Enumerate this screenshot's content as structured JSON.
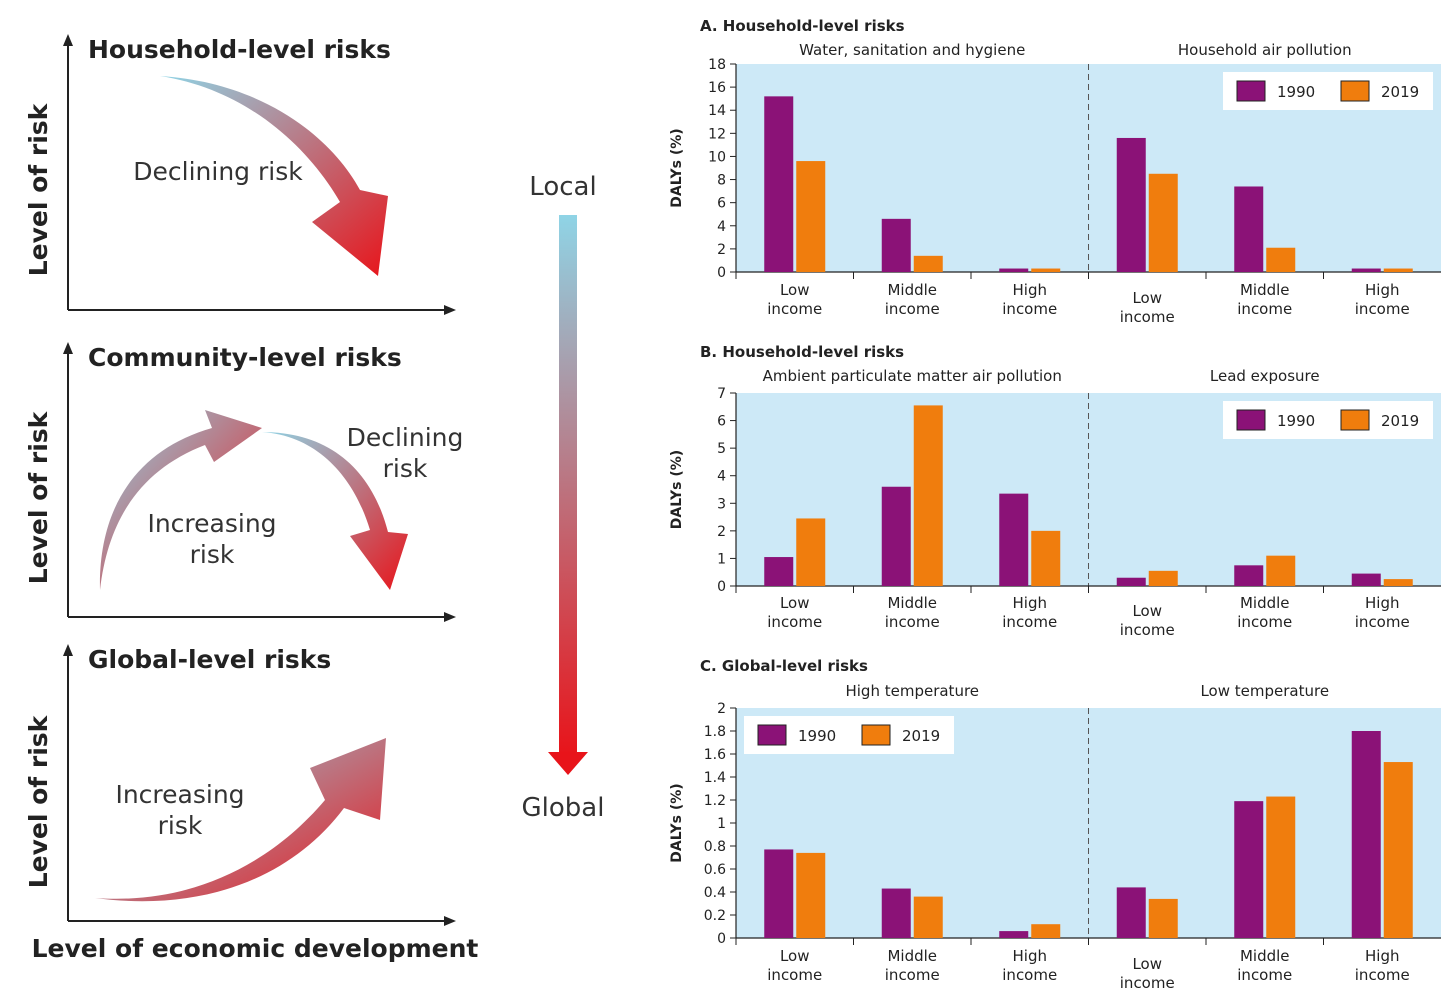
{
  "concept": {
    "panels": [
      {
        "title": "Household-level risks",
        "ylabel": "Level of risk",
        "labels": [
          "Declining risk"
        ]
      },
      {
        "title": "Community-level risks",
        "ylabel": "Level of risk",
        "labels": [
          "Increasing risk",
          "Declining risk"
        ]
      },
      {
        "title": "Global-level risks",
        "ylabel": "Level of risk",
        "labels": [
          "Increasing risk"
        ]
      }
    ],
    "xlabel": "Level of economic development",
    "scale": {
      "top": "Local",
      "bottom": "Global"
    }
  },
  "colors": {
    "s1990": "#8b1277",
    "s2019": "#f07d0d",
    "plot_bg": "#cde9f7",
    "arrow_start": "#8fd4e6",
    "arrow_end": "#e8141a"
  },
  "chart_data": [
    {
      "type": "bar",
      "title": "A. Household-level risks",
      "ylabel": "DALYs (%)",
      "ylim": [
        0,
        18
      ],
      "yticks": [
        0,
        2,
        4,
        6,
        8,
        10,
        12,
        14,
        16,
        18
      ],
      "legend": {
        "entries": [
          "1990",
          "2019"
        ],
        "position": "top-right"
      },
      "panels": [
        {
          "subtitle": "Water, sanitation and hygiene",
          "categories": [
            "Low income",
            "Middle income",
            "High income"
          ],
          "series": [
            {
              "name": "1990",
              "values": [
                15.2,
                4.6,
                0.3
              ]
            },
            {
              "name": "2019",
              "values": [
                9.6,
                1.4,
                0.3
              ]
            }
          ]
        },
        {
          "subtitle": "Household air pollution",
          "categories": [
            "Low income",
            "Middle income",
            "High income"
          ],
          "series": [
            {
              "name": "1990",
              "values": [
                11.6,
                7.4,
                0.3
              ]
            },
            {
              "name": "2019",
              "values": [
                8.5,
                2.1,
                0.3
              ]
            }
          ]
        }
      ]
    },
    {
      "type": "bar",
      "title": "B. Household-level risks",
      "ylabel": "DALYs (%)",
      "ylim": [
        0,
        7
      ],
      "yticks": [
        0,
        1,
        2,
        3,
        4,
        5,
        6,
        7
      ],
      "legend": {
        "entries": [
          "1990",
          "2019"
        ],
        "position": "top-right"
      },
      "panels": [
        {
          "subtitle": "Ambient particulate matter air pollution",
          "categories": [
            "Low income",
            "Middle income",
            "High income"
          ],
          "series": [
            {
              "name": "1990",
              "values": [
                1.05,
                3.6,
                3.35
              ]
            },
            {
              "name": "2019",
              "values": [
                2.45,
                6.55,
                2.0
              ]
            }
          ]
        },
        {
          "subtitle": "Lead exposure",
          "categories": [
            "Low income",
            "Middle income",
            "High income"
          ],
          "series": [
            {
              "name": "1990",
              "values": [
                0.3,
                0.75,
                0.45
              ]
            },
            {
              "name": "2019",
              "values": [
                0.55,
                1.1,
                0.25
              ]
            }
          ]
        }
      ]
    },
    {
      "type": "bar",
      "title": "C. Global-level risks",
      "ylabel": "DALYs (%)",
      "ylim": [
        0,
        2
      ],
      "yticks": [
        0,
        0.2,
        0.4,
        0.6,
        0.8,
        1,
        1.2,
        1.4,
        1.6,
        1.8,
        2
      ],
      "legend": {
        "entries": [
          "1990",
          "2019"
        ],
        "position": "top-left"
      },
      "panels": [
        {
          "subtitle": "High temperature",
          "categories": [
            "Low income",
            "Middle income",
            "High income"
          ],
          "series": [
            {
              "name": "1990",
              "values": [
                0.77,
                0.43,
                0.06
              ]
            },
            {
              "name": "2019",
              "values": [
                0.74,
                0.36,
                0.12
              ]
            }
          ]
        },
        {
          "subtitle": "Low temperature",
          "categories": [
            "Low income",
            "Middle income",
            "High income"
          ],
          "series": [
            {
              "name": "1990",
              "values": [
                0.44,
                1.19,
                1.8
              ]
            },
            {
              "name": "2019",
              "values": [
                0.34,
                1.23,
                1.53
              ]
            }
          ]
        }
      ]
    }
  ]
}
